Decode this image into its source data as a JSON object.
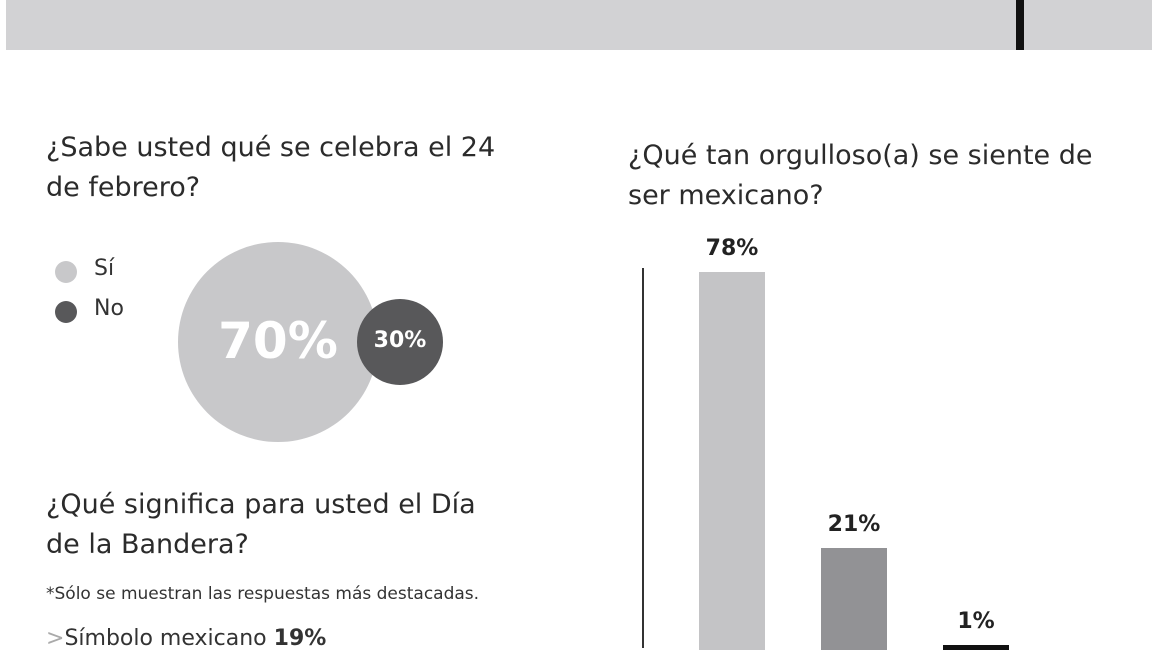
{
  "chart_data": [
    {
      "type": "bubble",
      "title": "¿Sabe usted qué se celebra el 24 de febrero?",
      "categories": [
        "Sí",
        "No"
      ],
      "values": [
        70,
        30
      ],
      "value_labels": [
        "70%",
        "30%"
      ],
      "colors": [
        "#c8c8ca",
        "#58585a"
      ]
    },
    {
      "type": "bar",
      "title": "¿Qué tan orgulloso(a) se siente de ser mexicano?",
      "categories": [
        null,
        null,
        null
      ],
      "values": [
        78,
        21,
        1
      ],
      "value_labels": [
        "78%",
        "21%",
        "1%"
      ],
      "colors": [
        "#c4c4c6",
        "#929295",
        "#111111"
      ]
    }
  ],
  "list_section": {
    "title": "¿Qué significa para usted el Día de la Bandera?",
    "note": "*Sólo se muestran las respuestas más destacadas.",
    "items": [
      {
        "label": "Símbolo mexicano",
        "value": "19%"
      }
    ]
  }
}
